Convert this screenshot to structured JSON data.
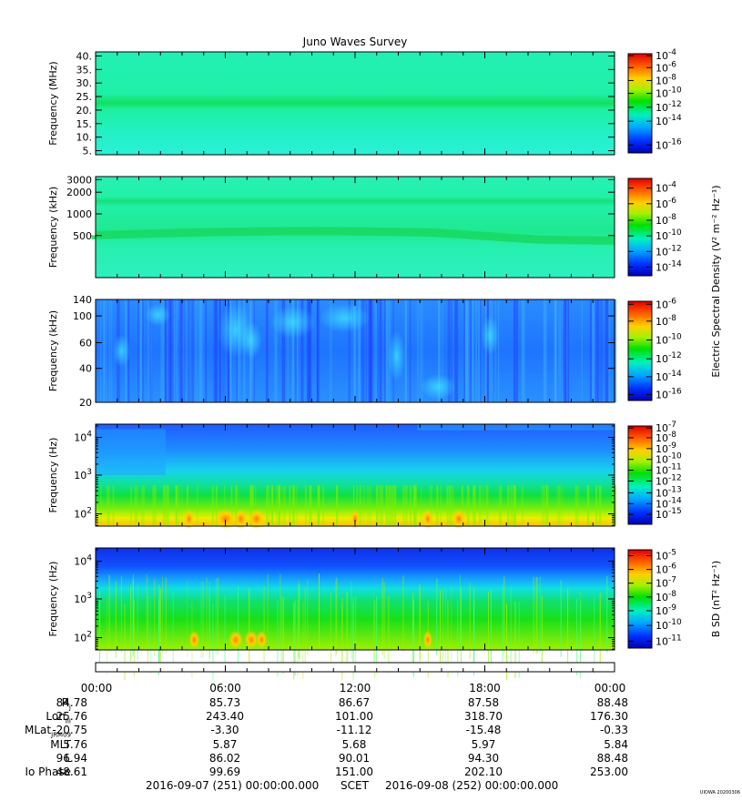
{
  "title": "Juno Waves Survey",
  "watermark": "UIOWA 20200306",
  "colors": {
    "background": "#ffffff",
    "axis": "#000000"
  },
  "chart_data": [
    {
      "type": "heatmap",
      "ylabel": "Frequency (MHz)",
      "yscale": "linear",
      "yticks": [
        {
          "v": 5,
          "t": "5."
        },
        {
          "v": 10,
          "t": "10."
        },
        {
          "v": 15,
          "t": "15."
        },
        {
          "v": 20,
          "t": "20."
        },
        {
          "v": 25,
          "t": "25."
        },
        {
          "v": 30,
          "t": "30."
        },
        {
          "v": 35,
          "t": "35."
        },
        {
          "v": 40,
          "t": "40."
        }
      ],
      "ylim": [
        3.5,
        41.5
      ],
      "colorbar": {
        "ticks": [
          {
            "e": "-4",
            "f": 0.02
          },
          {
            "e": "-6",
            "f": 0.14
          },
          {
            "e": "-8",
            "f": 0.27
          },
          {
            "e": "-10",
            "f": 0.4
          },
          {
            "e": "-12",
            "f": 0.54
          },
          {
            "e": "-14",
            "f": 0.68
          },
          {
            "e": "-16",
            "f": 0.92
          }
        ]
      }
    },
    {
      "type": "heatmap",
      "ylabel": "Frequency (kHz)",
      "yscale": "log",
      "yticks": [
        {
          "v": 500,
          "t": "500"
        },
        {
          "v": 1000,
          "t": "1000"
        },
        {
          "v": 2000,
          "t": "2000"
        },
        {
          "v": 3000,
          "t": "3000"
        }
      ],
      "ylim": [
        130,
        3300
      ],
      "colorbar": {
        "label": "Electric Spectral Density (V² m⁻² Hz⁻¹)",
        "ticks": [
          {
            "e": "-4",
            "f": 0.1
          },
          {
            "e": "-6",
            "f": 0.26
          },
          {
            "e": "-8",
            "f": 0.43
          },
          {
            "e": "-10",
            "f": 0.59
          },
          {
            "e": "-12",
            "f": 0.75
          },
          {
            "e": "-14",
            "f": 0.91
          }
        ]
      }
    },
    {
      "type": "heatmap",
      "ylabel": "Frequency (kHz)",
      "yscale": "linear",
      "yticks": [
        {
          "v": 20,
          "t": "20"
        },
        {
          "v": 40,
          "t": "40"
        },
        {
          "v": 60,
          "t": "60"
        },
        {
          "v": 100,
          "t": "100"
        },
        {
          "v": 140,
          "t": "140"
        }
      ],
      "yfracs": [
        0.0,
        0.33,
        0.58,
        0.84,
        1.0
      ],
      "colorbar": {
        "ticks": [
          {
            "e": "-6",
            "f": 0.03
          },
          {
            "e": "-8",
            "f": 0.2
          },
          {
            "e": "-10",
            "f": 0.39
          },
          {
            "e": "-12",
            "f": 0.58
          },
          {
            "e": "-14",
            "f": 0.76
          },
          {
            "e": "-16",
            "f": 0.94
          }
        ]
      }
    },
    {
      "type": "heatmap",
      "ylabel": "Frequency (Hz)",
      "yscale": "log",
      "yticks": [
        {
          "e": "2",
          "f": 0.12
        },
        {
          "e": "3",
          "f": 0.5
        },
        {
          "e": "4",
          "f": 0.87
        }
      ],
      "colorbar": {
        "ticks": [
          {
            "e": "-7",
            "f": 0.02
          },
          {
            "e": "-8",
            "f": 0.12
          },
          {
            "e": "-9",
            "f": 0.23
          },
          {
            "e": "-10",
            "f": 0.34
          },
          {
            "e": "-11",
            "f": 0.45
          },
          {
            "e": "-12",
            "f": 0.56
          },
          {
            "e": "-13",
            "f": 0.68
          },
          {
            "e": "-14",
            "f": 0.79
          },
          {
            "e": "-15",
            "f": 0.9
          }
        ]
      }
    },
    {
      "type": "heatmap",
      "ylabel": "Frequency (Hz)",
      "yscale": "log",
      "yticks": [
        {
          "e": "2",
          "f": 0.12
        },
        {
          "e": "3",
          "f": 0.5
        },
        {
          "e": "4",
          "f": 0.87
        }
      ],
      "colorbar": {
        "label": "B SD (nT² Hz⁻¹)",
        "ticks": [
          {
            "e": "-5",
            "f": 0.06
          },
          {
            "e": "-6",
            "f": 0.2
          },
          {
            "e": "-7",
            "f": 0.34
          },
          {
            "e": "-8",
            "f": 0.48
          },
          {
            "e": "-9",
            "f": 0.62
          },
          {
            "e": "-10",
            "f": 0.77
          },
          {
            "e": "-11",
            "f": 0.93
          }
        ]
      }
    }
  ],
  "time_axis": [
    "00:00",
    "06:00",
    "12:00",
    "18:00",
    "00:00"
  ],
  "ephemeris": [
    {
      "label": "R",
      "sub": "J",
      "values": [
        "84.78",
        "85.73",
        "86.67",
        "87.58",
        "88.48"
      ]
    },
    {
      "label": "Lon",
      "sub": "III",
      "values": [
        "25.76",
        "243.40",
        "101.00",
        "318.70",
        "176.30"
      ]
    },
    {
      "label": "MLat",
      "sub": "JRM09",
      "values": [
        "-20.75",
        "-3.30",
        "-11.12",
        "-15.48",
        "-0.33"
      ]
    },
    {
      "label": "MLT",
      "sub": "",
      "values": [
        "5.76",
        "5.87",
        "5.68",
        "5.97",
        "5.84"
      ]
    },
    {
      "label": "L",
      "sub": "",
      "values": [
        "96.94",
        "86.02",
        "90.01",
        "94.30",
        "88.48"
      ]
    },
    {
      "label": "Io Phase",
      "sub": "",
      "values": [
        "48.61",
        "99.69",
        "151.00",
        "202.10",
        "253.00"
      ]
    }
  ],
  "footer": {
    "start": "2016-09-07 (251) 00:00:00.000",
    "mid": "SCET",
    "end": "2016-09-08 (252) 00:00:00.000"
  }
}
